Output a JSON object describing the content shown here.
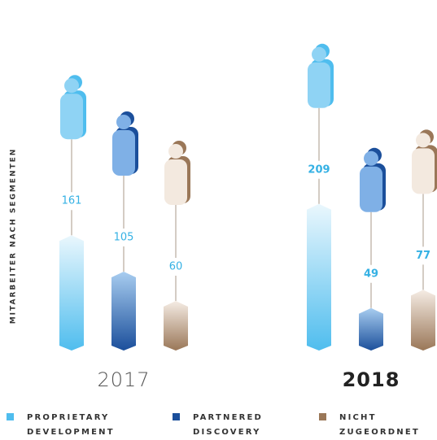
{
  "chart_data": {
    "type": "bar",
    "y_axis_label": "MITARBEITER NACH SEGMENTEN",
    "categories": [
      "2017",
      "2018"
    ],
    "series": [
      {
        "name": "PROPRIETARY DEVELOPMENT",
        "color": "#4fbdee",
        "values": [
          161,
          209
        ]
      },
      {
        "name": "PARTNERED DISCOVERY",
        "color": "#1b4f9b",
        "values": [
          105,
          49
        ]
      },
      {
        "name": "NICHT ZUGEORDNET",
        "color": "#9a7758",
        "values": [
          60,
          77
        ]
      }
    ]
  }
}
